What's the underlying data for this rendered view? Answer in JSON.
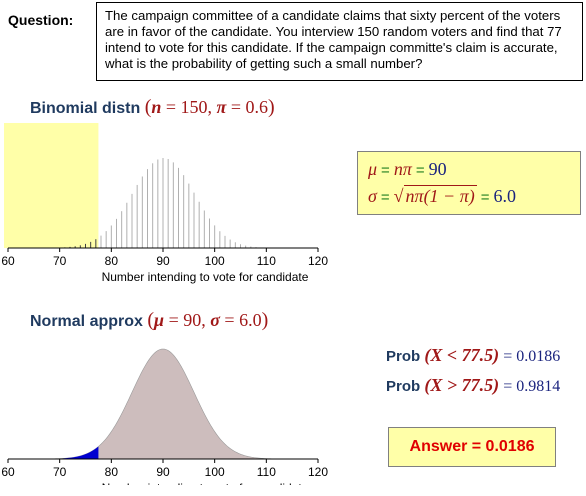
{
  "question": {
    "label": "Question:",
    "text": "The campaign committee of a candidate claims that sixty percent of the voters are in favor of the candidate. You interview 150 random voters and find that 77 intend to vote for this candidate. If the campaign committe's claim is accurate, what is the probability of getting such a small number?"
  },
  "binomial": {
    "heading": "Binomial distn",
    "n_symbol": "n",
    "n_value": "= 150,",
    "pi_symbol": "π",
    "pi_value": "= 0.6"
  },
  "normal": {
    "heading": "Normal approx",
    "mu_symbol": "μ",
    "mu_value": "= 90,",
    "sigma_symbol": "σ",
    "sigma_value": "= 6.0"
  },
  "params": {
    "mu_symbol": "μ",
    "mu_expr": "nπ",
    "mu_value": "90",
    "sigma_symbol": "σ",
    "sigma_expr": "nπ(1 − π)",
    "sigma_value": "6.0",
    "equals": "="
  },
  "probs": {
    "less_label": "Prob",
    "less_expr": "(X < 77.5)",
    "less_value": "= 0.0186",
    "greater_label": "Prob",
    "greater_expr": "(X > 77.5)",
    "greater_value": "= 0.9814"
  },
  "answer": "Answer = 0.0186",
  "colors": {
    "highlight": "#ffffa8",
    "normal_fill": "#cdbdbd",
    "tail_fill": "#0000d0",
    "binomial_bar": "#b0b0b0",
    "dark_bar": "#404040"
  },
  "chart_data": [
    {
      "type": "bar",
      "n": 150,
      "p": 0.6,
      "x_range": [
        60,
        120
      ],
      "cutoff": 77,
      "x_ticks": [
        "60",
        "70",
        "80",
        "90",
        "100",
        "110",
        "120"
      ],
      "xlabel": "Number intending to vote for candidate"
    },
    {
      "type": "area",
      "mean": 90,
      "sd": 6.0,
      "x_range": [
        60,
        120
      ],
      "cutoff": 77.5,
      "x_ticks": [
        "60",
        "70",
        "80",
        "90",
        "100",
        "110",
        "120"
      ],
      "xlabel": "Number intending to vote for candidate"
    }
  ]
}
